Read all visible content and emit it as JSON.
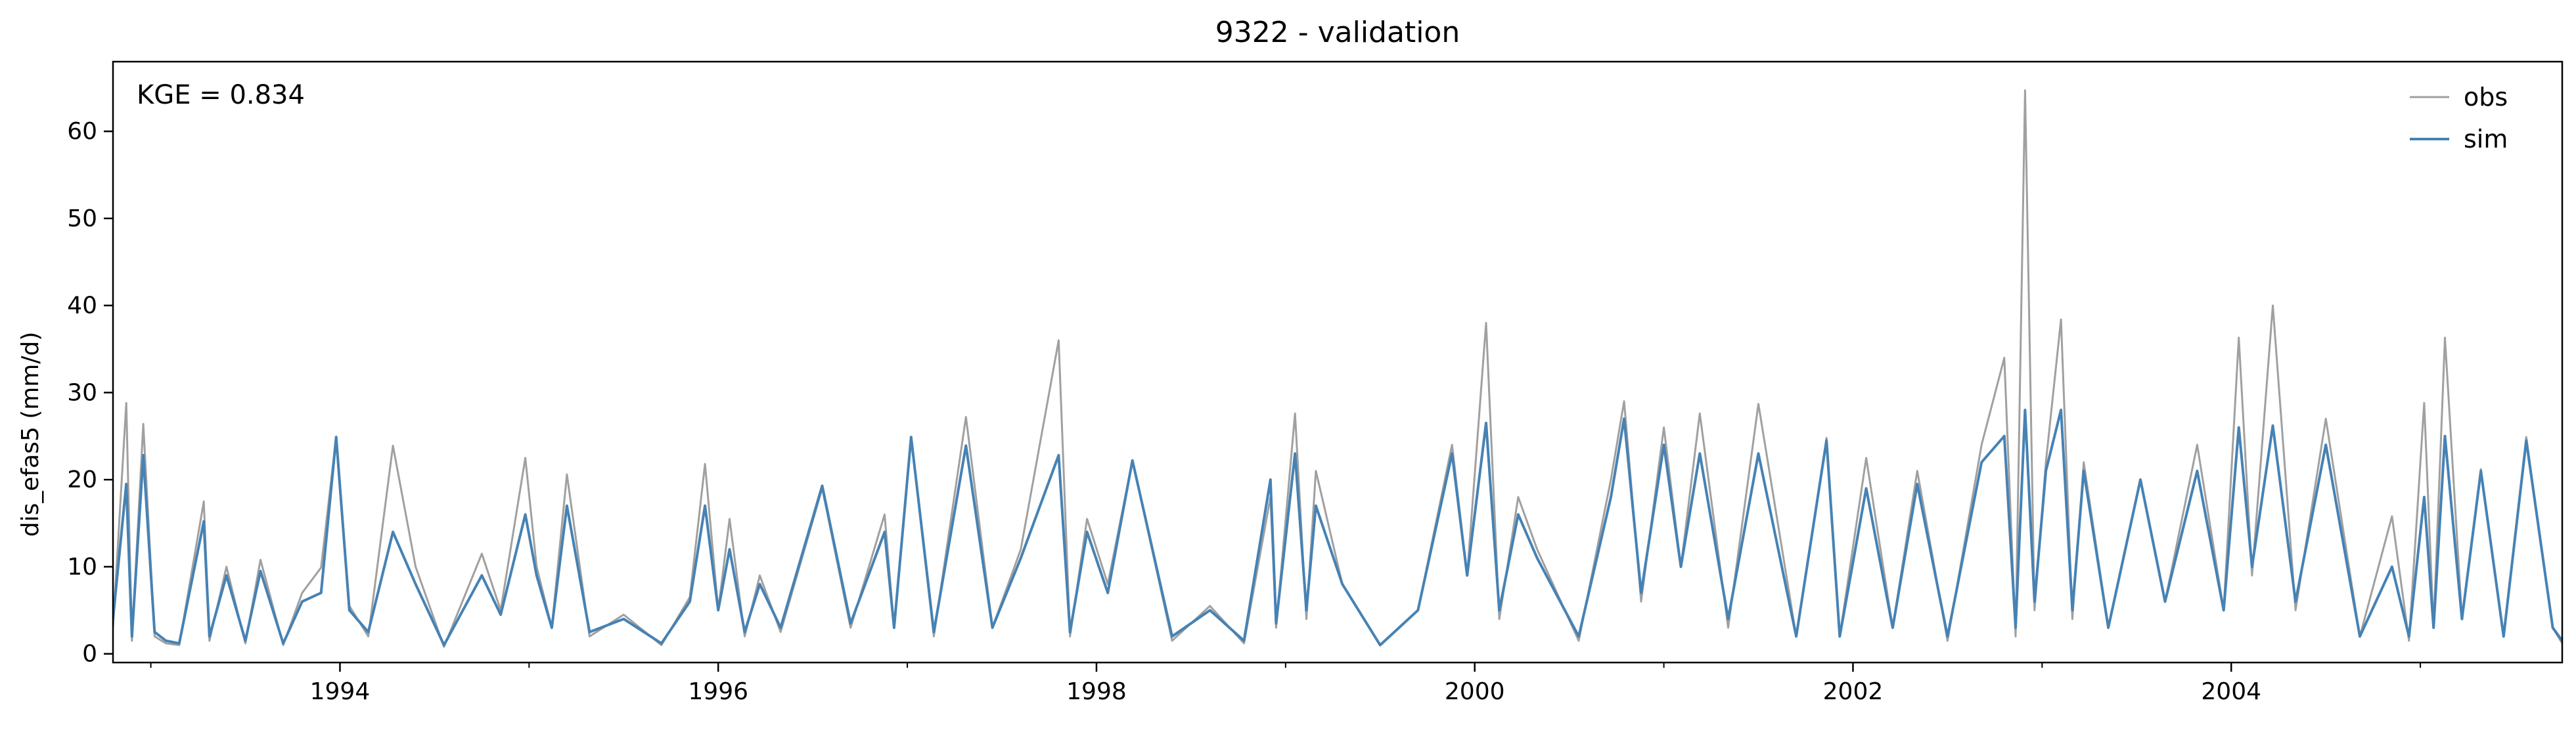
{
  "chart_data": {
    "type": "line",
    "title": "9322 - validation",
    "xlabel": "",
    "ylabel": "dis_efas5 (mm/d)",
    "annotation": "KGE = 0.834",
    "xlim": [
      1992.8,
      2005.75
    ],
    "ylim": [
      -1,
      68
    ],
    "x_ticks": [
      1994,
      1996,
      1998,
      2000,
      2002,
      2004
    ],
    "x_tick_labels": [
      "1994",
      "1996",
      "1998",
      "2000",
      "2002",
      "2004"
    ],
    "y_ticks": [
      0,
      10,
      20,
      30,
      40,
      50,
      60
    ],
    "y_tick_labels": [
      "0",
      "10",
      "20",
      "30",
      "40",
      "50",
      "60"
    ],
    "grid": false,
    "legend": {
      "placement": "top-right",
      "entries": [
        "obs",
        "sim"
      ]
    },
    "colors": {
      "obs": "#a0a0a0",
      "sim": "#4682b4"
    },
    "series": [
      {
        "name": "obs",
        "x": [
          1992.8,
          1992.87,
          1992.9,
          1992.96,
          1993.02,
          1993.08,
          1993.15,
          1993.28,
          1993.31,
          1993.4,
          1993.5,
          1993.58,
          1993.7,
          1993.8,
          1993.9,
          1993.98,
          1994.05,
          1994.15,
          1994.28,
          1994.4,
          1994.55,
          1994.75,
          1994.85,
          1994.98,
          1995.04,
          1995.12,
          1995.2,
          1995.32,
          1995.5,
          1995.7,
          1995.85,
          1995.93,
          1996.0,
          1996.06,
          1996.14,
          1996.22,
          1996.33,
          1996.55,
          1996.7,
          1996.88,
          1996.93,
          1997.02,
          1997.14,
          1997.31,
          1997.45,
          1997.6,
          1997.8,
          1997.86,
          1997.95,
          1998.06,
          1998.19,
          1998.4,
          1998.6,
          1998.78,
          1998.92,
          1998.95,
          1999.05,
          1999.11,
          1999.16,
          1999.3,
          1999.5,
          1999.7,
          1999.88,
          1999.96,
          2000.06,
          2000.13,
          2000.23,
          2000.33,
          2000.55,
          2000.72,
          2000.79,
          2000.88,
          2001.0,
          2001.09,
          2001.19,
          2001.34,
          2001.5,
          2001.7,
          2001.86,
          2001.93,
          2002.07,
          2002.21,
          2002.34,
          2002.5,
          2002.68,
          2002.8,
          2002.86,
          2002.91,
          2002.96,
          2003.02,
          2003.1,
          2003.16,
          2003.22,
          2003.35,
          2003.52,
          2003.65,
          2003.82,
          2003.96,
          2004.04,
          2004.11,
          2004.22,
          2004.34,
          2004.5,
          2004.68,
          2004.85,
          2004.94,
          2005.02,
          2005.07,
          2005.13,
          2005.22,
          2005.32,
          2005.44,
          2005.56,
          2005.7,
          2005.75
        ],
        "y": [
          3,
          28.8,
          1.5,
          26.4,
          2,
          1.2,
          1,
          17.5,
          1.5,
          10,
          1.2,
          10.8,
          1,
          7,
          9.9,
          24.9,
          5.5,
          2,
          23.9,
          10,
          0.8,
          11.5,
          5,
          22.5,
          10,
          3,
          20.6,
          2,
          4.5,
          1,
          6.5,
          21.8,
          5,
          15.5,
          2,
          9,
          2.5,
          19,
          3,
          16,
          3,
          24.9,
          2,
          27.2,
          3,
          12,
          36,
          2,
          15.5,
          8,
          22.2,
          1.5,
          5.5,
          1.2,
          18,
          3,
          27.6,
          4,
          21,
          8,
          1,
          5,
          24,
          9,
          38,
          4,
          18,
          12,
          1.5,
          20,
          29,
          6,
          26,
          10,
          27.6,
          3,
          28.7,
          2,
          24.8,
          2,
          22.5,
          3,
          21,
          1.5,
          24,
          34,
          2,
          64.7,
          5,
          22,
          38.4,
          4,
          22,
          3,
          20,
          6,
          24,
          5,
          36.3,
          9,
          40,
          5,
          27,
          2,
          15.8,
          1.5,
          28.8,
          3,
          36.3,
          4,
          21.2,
          2,
          24.9,
          3,
          1.2
        ]
      },
      {
        "name": "sim",
        "x": [
          1992.8,
          1992.87,
          1992.9,
          1992.96,
          1993.02,
          1993.08,
          1993.15,
          1993.28,
          1993.31,
          1993.4,
          1993.5,
          1993.58,
          1993.7,
          1993.8,
          1993.9,
          1993.98,
          1994.05,
          1994.15,
          1994.28,
          1994.4,
          1994.55,
          1994.75,
          1994.85,
          1994.98,
          1995.04,
          1995.12,
          1995.2,
          1995.32,
          1995.5,
          1995.7,
          1995.85,
          1995.93,
          1996.0,
          1996.06,
          1996.14,
          1996.22,
          1996.33,
          1996.55,
          1996.7,
          1996.88,
          1996.93,
          1997.02,
          1997.14,
          1997.31,
          1997.45,
          1997.6,
          1997.8,
          1997.86,
          1997.95,
          1998.06,
          1998.19,
          1998.4,
          1998.6,
          1998.78,
          1998.92,
          1998.95,
          1999.05,
          1999.11,
          1999.16,
          1999.3,
          1999.5,
          1999.7,
          1999.88,
          1999.96,
          2000.06,
          2000.13,
          2000.23,
          2000.33,
          2000.55,
          2000.72,
          2000.79,
          2000.88,
          2001.0,
          2001.09,
          2001.19,
          2001.34,
          2001.5,
          2001.7,
          2001.86,
          2001.93,
          2002.07,
          2002.21,
          2002.34,
          2002.5,
          2002.68,
          2002.8,
          2002.86,
          2002.91,
          2002.96,
          2003.02,
          2003.1,
          2003.16,
          2003.22,
          2003.35,
          2003.52,
          2003.65,
          2003.82,
          2003.96,
          2004.04,
          2004.11,
          2004.22,
          2004.34,
          2004.5,
          2004.68,
          2004.85,
          2004.94,
          2005.02,
          2005.07,
          2005.13,
          2005.22,
          2005.32,
          2005.44,
          2005.56,
          2005.7,
          2005.75
        ],
        "y": [
          4,
          19.5,
          2,
          22.8,
          2.5,
          1.5,
          1.2,
          15.2,
          2,
          9,
          1.5,
          9.5,
          1.2,
          6,
          7,
          24.9,
          5,
          2.5,
          14,
          8,
          1,
          9,
          4.5,
          16,
          9,
          3,
          17,
          2.5,
          4,
          1.2,
          6,
          17,
          5,
          12,
          2.5,
          8,
          3,
          19.3,
          3.5,
          14,
          3,
          24.9,
          2.5,
          23.9,
          3,
          11,
          22.8,
          2.5,
          14,
          7,
          22.2,
          2,
          5,
          1.5,
          20,
          3.5,
          23,
          5,
          17,
          8,
          1,
          5,
          23,
          9,
          26.5,
          5,
          16,
          11,
          2,
          18,
          27,
          7,
          24,
          10,
          23,
          4,
          23,
          2,
          24.5,
          2,
          19,
          3,
          19.5,
          2,
          22,
          25,
          3,
          28,
          6,
          21,
          28,
          5,
          21,
          3,
          20,
          6,
          21,
          5,
          26,
          10,
          26.2,
          6,
          24,
          2,
          10,
          2,
          18,
          3,
          25,
          4,
          21,
          2,
          24.5,
          3,
          1.5
        ]
      }
    ]
  }
}
